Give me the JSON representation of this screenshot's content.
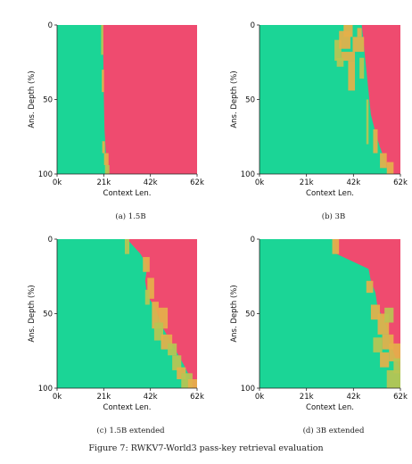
{
  "figure": {
    "caption": "Figure 7: RWKV7-World3 pass-key retrieval evaluation"
  },
  "colors": {
    "pass": "#1bd596",
    "fail": "#ef4b6f",
    "mid": "#e5b04a",
    "mixed": "#b9c452"
  },
  "chart_data": [
    {
      "type": "heatmap",
      "caption": "(a) 1.5B",
      "xlabel": "Context Len.",
      "ylabel": "Ans. Depth (%)",
      "xticks": [
        "0k",
        "21k",
        "42k",
        "62k"
      ],
      "yticks": [
        "0",
        "50",
        "100"
      ],
      "xlim": [
        0,
        62
      ],
      "ylim": [
        0,
        100
      ],
      "fail_boundary": [
        [
          0,
          20
        ],
        [
          12,
          20.3
        ],
        [
          25,
          20.5
        ],
        [
          40,
          20.6
        ],
        [
          55,
          20.8
        ],
        [
          70,
          21
        ],
        [
          85,
          21.6
        ],
        [
          100,
          22
        ]
      ],
      "transition_cells": [
        [
          19.5,
          0,
          1,
          20,
          "mixed"
        ],
        [
          19.8,
          30,
          1,
          15,
          "mid"
        ],
        [
          20,
          78,
          1.2,
          8,
          "mid"
        ],
        [
          20.8,
          86,
          2,
          8,
          "mid"
        ],
        [
          21.2,
          94,
          2,
          6,
          "mixed"
        ]
      ]
    },
    {
      "type": "heatmap",
      "caption": "(b) 3B",
      "xlabel": "Context Len.",
      "ylabel": "Ans. Depth (%)",
      "xticks": [
        "0k",
        "21k",
        "42k",
        "62k"
      ],
      "yticks": [
        "0",
        "50",
        "100"
      ],
      "xlim": [
        0,
        62
      ],
      "ylim": [
        0,
        100
      ],
      "fail_boundary": [
        [
          0,
          45
        ],
        [
          15,
          46
        ],
        [
          30,
          47
        ],
        [
          45,
          48
        ],
        [
          60,
          49
        ],
        [
          72,
          51
        ],
        [
          82,
          53
        ],
        [
          90,
          55
        ],
        [
          100,
          57
        ]
      ],
      "transition_cells": [
        [
          33,
          10,
          3,
          14,
          "mixed"
        ],
        [
          35,
          4,
          5,
          12,
          "mid"
        ],
        [
          37,
          0,
          4,
          8,
          "mid"
        ],
        [
          36,
          18,
          6,
          6,
          "mid"
        ],
        [
          34,
          22,
          3,
          6,
          "mixed"
        ],
        [
          39,
          24,
          3,
          20,
          "mid"
        ],
        [
          41,
          8,
          5,
          10,
          "mid"
        ],
        [
          43,
          2,
          2,
          6,
          "mid"
        ],
        [
          44,
          22,
          2,
          14,
          "mixed"
        ],
        [
          47,
          50,
          1,
          30,
          "mixed"
        ],
        [
          50,
          70,
          2,
          16,
          "mid"
        ],
        [
          53,
          86,
          3,
          10,
          "mid"
        ],
        [
          56,
          92,
          3,
          8,
          "mid"
        ]
      ]
    },
    {
      "type": "heatmap",
      "caption": "(c) 1.5B extended",
      "xlabel": "Context Len.",
      "ylabel": "Ans. Depth (%)",
      "xticks": [
        "0k",
        "21k",
        "42k",
        "62k"
      ],
      "yticks": [
        "0",
        "50",
        "100"
      ],
      "xlim": [
        0,
        62
      ],
      "ylim": [
        0,
        100
      ],
      "fail_boundary": [
        [
          0,
          31
        ],
        [
          10,
          37
        ],
        [
          18,
          40
        ],
        [
          28,
          39
        ],
        [
          38,
          40
        ],
        [
          45,
          43
        ],
        [
          52,
          45
        ],
        [
          60,
          47
        ],
        [
          68,
          50
        ],
        [
          76,
          53
        ],
        [
          84,
          56
        ],
        [
          90,
          58
        ],
        [
          100,
          60
        ]
      ],
      "transition_cells": [
        [
          30,
          0,
          2,
          10,
          "mixed"
        ],
        [
          38,
          12,
          3,
          10,
          "mid"
        ],
        [
          40,
          26,
          3,
          14,
          "mid"
        ],
        [
          39,
          34,
          2,
          10,
          "mixed"
        ],
        [
          42,
          42,
          3,
          18,
          "mid"
        ],
        [
          45,
          46,
          4,
          14,
          "mid"
        ],
        [
          43,
          56,
          4,
          12,
          "mixed"
        ],
        [
          46,
          64,
          5,
          10,
          "mid"
        ],
        [
          49,
          70,
          4,
          8,
          "mixed"
        ],
        [
          51,
          78,
          4,
          10,
          "mixed"
        ],
        [
          53,
          86,
          4,
          8,
          "mid"
        ],
        [
          55,
          90,
          5,
          10,
          "mixed"
        ],
        [
          58,
          94,
          4,
          6,
          "mid"
        ]
      ]
    },
    {
      "type": "heatmap",
      "caption": "(d) 3B extended",
      "xlabel": "Context Len.",
      "ylabel": "Ans. Depth (%)",
      "xticks": [
        "0k",
        "21k",
        "42k",
        "62k"
      ],
      "yticks": [
        "0",
        "50",
        "100"
      ],
      "xlim": [
        0,
        62
      ],
      "ylim": [
        0,
        100
      ],
      "fail_boundary": [
        [
          0,
          33
        ],
        [
          10,
          34
        ],
        [
          20,
          48
        ],
        [
          28,
          49
        ],
        [
          36,
          51
        ],
        [
          46,
          52
        ],
        [
          52,
          54
        ],
        [
          58,
          56
        ],
        [
          66,
          57
        ],
        [
          72,
          58
        ],
        [
          80,
          60
        ],
        [
          88,
          62
        ],
        [
          100,
          62
        ]
      ],
      "transition_cells": [
        [
          32,
          0,
          3,
          10,
          "mid"
        ],
        [
          47,
          28,
          3,
          8,
          "mid"
        ],
        [
          49,
          44,
          4,
          10,
          "mid"
        ],
        [
          52,
          50,
          5,
          14,
          "mid"
        ],
        [
          55,
          46,
          4,
          10,
          "mixed"
        ],
        [
          54,
          64,
          5,
          10,
          "mid"
        ],
        [
          50,
          66,
          4,
          10,
          "mixed"
        ],
        [
          57,
          70,
          5,
          12,
          "mid"
        ],
        [
          53,
          76,
          4,
          10,
          "mid"
        ],
        [
          59,
          80,
          3,
          10,
          "mixed"
        ],
        [
          56,
          88,
          6,
          12,
          "mixed"
        ]
      ]
    }
  ]
}
